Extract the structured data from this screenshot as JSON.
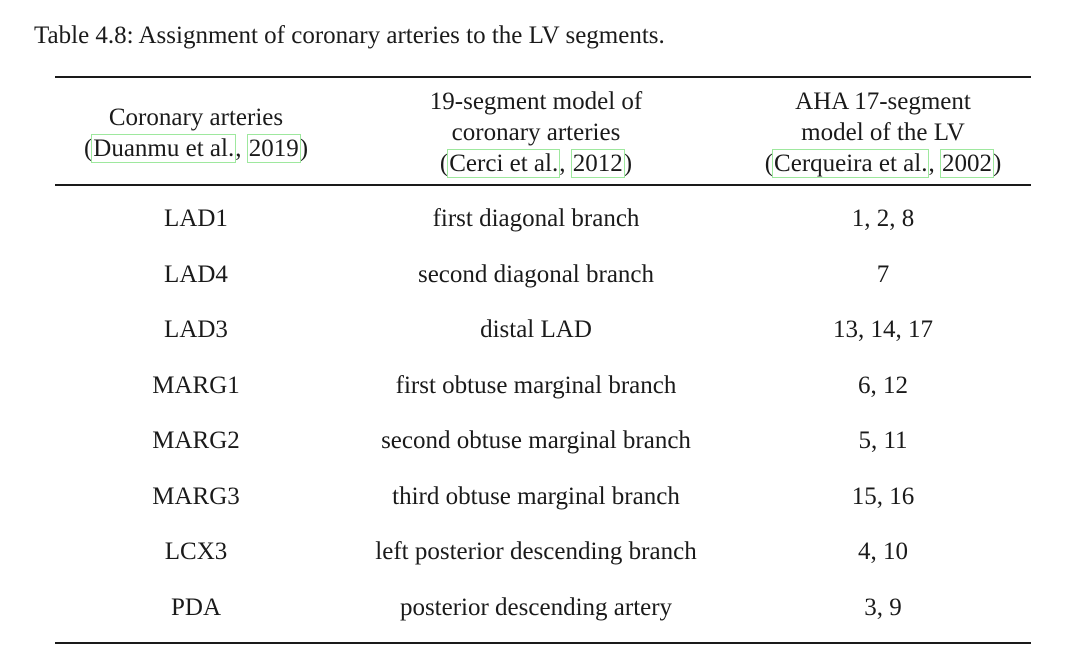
{
  "caption": "Table 4.8: Assignment of coronary arteries to the LV segments.",
  "header": {
    "col1": {
      "line1": "Coronary arteries",
      "cite_open": "(",
      "cite_author": "Duanmu et al.",
      "cite_sep": ", ",
      "cite_year": "2019",
      "cite_close": ")"
    },
    "col2": {
      "line1": "19-segment model of",
      "line2": "coronary arteries",
      "cite_open": "(",
      "cite_author": "Cerci et al.",
      "cite_sep": ", ",
      "cite_year": "2012",
      "cite_close": ")"
    },
    "col3": {
      "line1": "AHA 17-segment",
      "line2": "model of the LV",
      "cite_open": "(",
      "cite_author": "Cerqueira et al.",
      "cite_sep": ", ",
      "cite_year": "2002",
      "cite_close": ")"
    }
  },
  "rows": [
    {
      "artery": "LAD1",
      "model19": "first diagonal branch",
      "aha17": "1, 2, 8"
    },
    {
      "artery": "LAD4",
      "model19": "second diagonal branch",
      "aha17": "7"
    },
    {
      "artery": "LAD3",
      "model19": "distal LAD",
      "aha17": "13, 14, 17"
    },
    {
      "artery": "MARG1",
      "model19": "first obtuse marginal branch",
      "aha17": "6, 12"
    },
    {
      "artery": "MARG2",
      "model19": "second obtuse marginal branch",
      "aha17": "5, 11"
    },
    {
      "artery": "MARG3",
      "model19": "third obtuse marginal branch",
      "aha17": "15, 16"
    },
    {
      "artery": "LCX3",
      "model19": "left posterior descending branch",
      "aha17": "4, 10"
    },
    {
      "artery": "PDA",
      "model19": "posterior descending artery",
      "aha17": "3, 9"
    }
  ]
}
